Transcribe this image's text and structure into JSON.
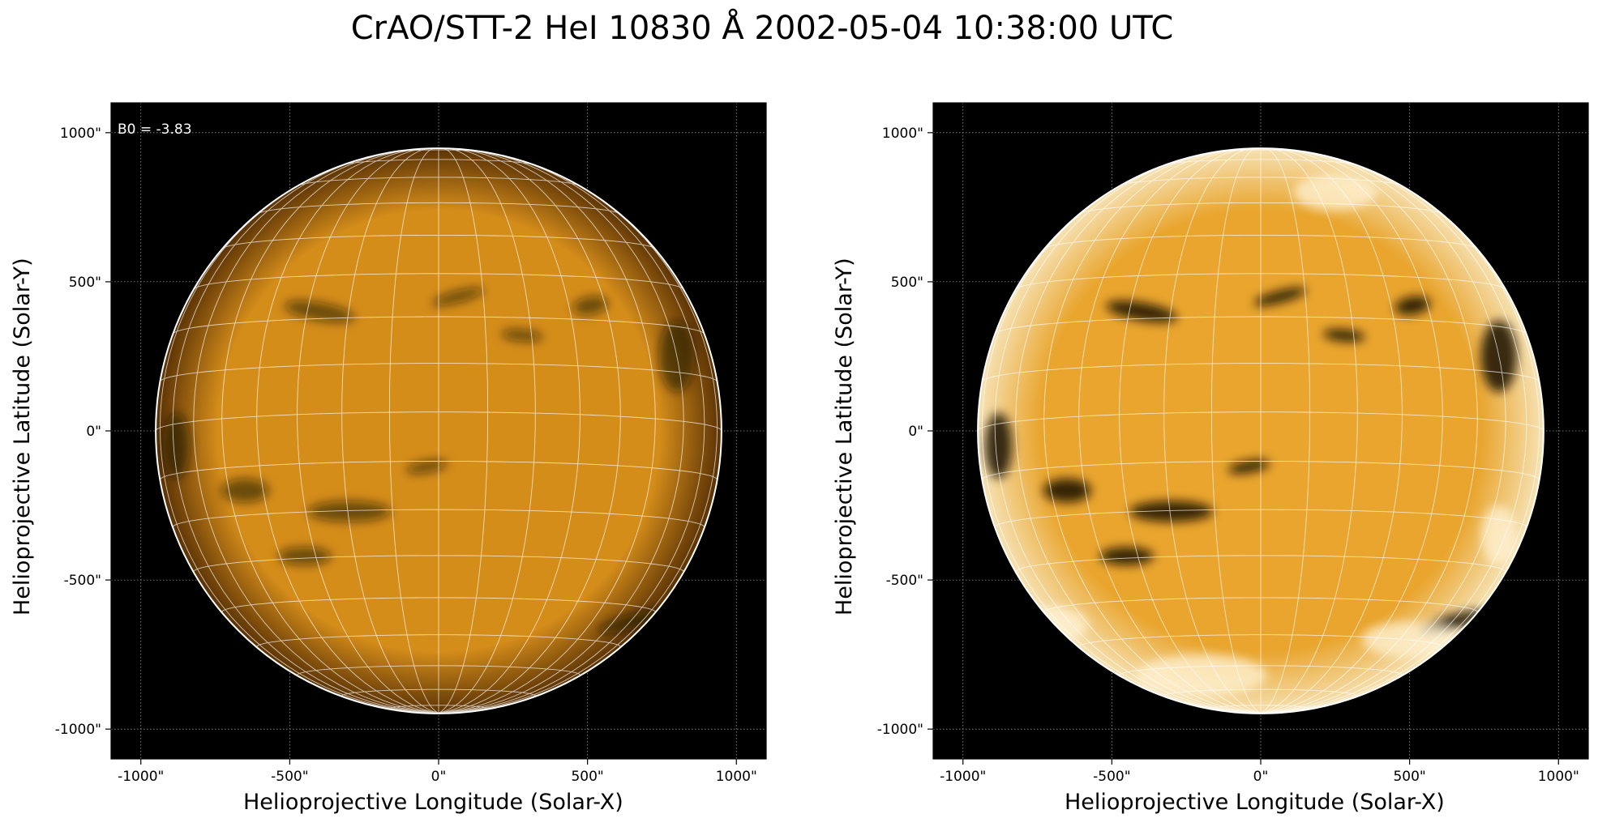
{
  "figure": {
    "title": "CrAO/STT-2 HeI 10830 Å 2002-05-04 10:38:00 UTC"
  },
  "axes": {
    "xlabel": "Helioprojective Longitude (Solar-X)",
    "ylabel": "Helioprojective Latitude (Solar-Y)",
    "x_ticks": [
      "-1000\"",
      "-500\"",
      "0\"",
      "500\"",
      "1000\""
    ],
    "y_ticks": [
      "1000\"",
      "500\"",
      "0\"",
      "-500\"",
      "-1000\""
    ],
    "x_tick_values": [
      -1000,
      -500,
      0,
      500,
      1000
    ],
    "y_tick_values": [
      1000,
      500,
      0,
      -500,
      -1000
    ],
    "xlim": [
      -1100,
      1100
    ],
    "ylim": [
      -1100,
      1100
    ]
  },
  "panels": [
    {
      "id": "left",
      "annotation": "B0 = -3.83",
      "style": "original",
      "disk_color": "#d58d1a",
      "limb_color": "#5a3205"
    },
    {
      "id": "right",
      "annotation": "",
      "style": "enhanced",
      "disk_color": "#e9a52e",
      "limb_color": "#f6e2b4"
    }
  ],
  "colors": {
    "background": "#000000",
    "grid": "#ffffff",
    "limb": "#ffffff"
  },
  "solar_radius_arcsec": 950,
  "grid": true,
  "features": [
    {
      "name": "filament-north-left",
      "x": -400,
      "y": 400,
      "rx": 120,
      "ry": 30,
      "rot": 10
    },
    {
      "name": "filament-north-center",
      "x": 65,
      "y": 450,
      "rx": 20,
      "ry": 90,
      "rot": 75
    },
    {
      "name": "filament-north-mid",
      "x": 280,
      "y": 320,
      "rx": 70,
      "ry": 20,
      "rot": 5
    },
    {
      "name": "filament-north-right",
      "x": 510,
      "y": 420,
      "rx": 60,
      "ry": 30,
      "rot": -10
    },
    {
      "name": "limb-east-north",
      "x": 800,
      "y": 250,
      "rx": 60,
      "ry": 120,
      "rot": 0
    },
    {
      "name": "filament-center",
      "x": -40,
      "y": -120,
      "rx": 20,
      "ry": 70,
      "rot": 80
    },
    {
      "name": "filament-south-left",
      "x": -650,
      "y": -200,
      "rx": 80,
      "ry": 40,
      "rot": 0
    },
    {
      "name": "filament-south-mid",
      "x": -300,
      "y": -270,
      "rx": 140,
      "ry": 35,
      "rot": 0
    },
    {
      "name": "filament-south-lower",
      "x": -450,
      "y": -420,
      "rx": 90,
      "ry": 30,
      "rot": 0
    },
    {
      "name": "limb-west",
      "x": -880,
      "y": -50,
      "rx": 45,
      "ry": 110,
      "rot": 0
    },
    {
      "name": "filament-south-right",
      "x": 650,
      "y": -640,
      "rx": 120,
      "ry": 25,
      "rot": -15
    }
  ]
}
